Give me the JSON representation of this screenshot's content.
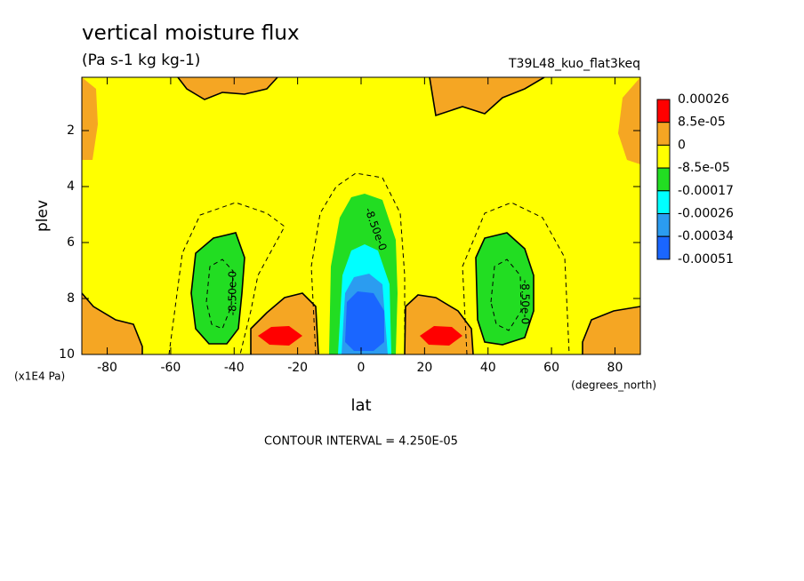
{
  "chart_data": {
    "type": "contour",
    "title": "vertical moisture flux",
    "subtitle": "(Pa s-1 kg kg-1)",
    "dataset": "T39L48_kuo_flat3keq",
    "x_label": "lat",
    "x_units": "(degrees_north)",
    "y_label": "plev",
    "y_units": "(x1E4 Pa)",
    "footer": "CONTOUR INTERVAL = 4.250E-05",
    "xlim": [
      -88,
      88
    ],
    "xticks": [
      -80,
      -60,
      -40,
      -20,
      0,
      20,
      40,
      60,
      80
    ],
    "ylim": [
      10,
      0.095
    ],
    "yticks": [
      2,
      4,
      6,
      8,
      10
    ],
    "levels": [
      0.00026,
      {
        "value": 8.5e-05,
        "label": "8.5e-05"
      },
      0,
      {
        "value": -8.5e-05,
        "label": "-8.5e-05"
      },
      -0.00017,
      -0.00026,
      -0.00034,
      -0.00051
    ],
    "colors": [
      "#ff0000",
      "#f5a623",
      "#ffff00",
      "#22dd22",
      "#00ffff",
      "#2b9cf0",
      "#1a66ff"
    ],
    "contour_labels": [
      "-8.50e-0",
      "-8.50e-0",
      "-8.50e-0"
    ]
  }
}
